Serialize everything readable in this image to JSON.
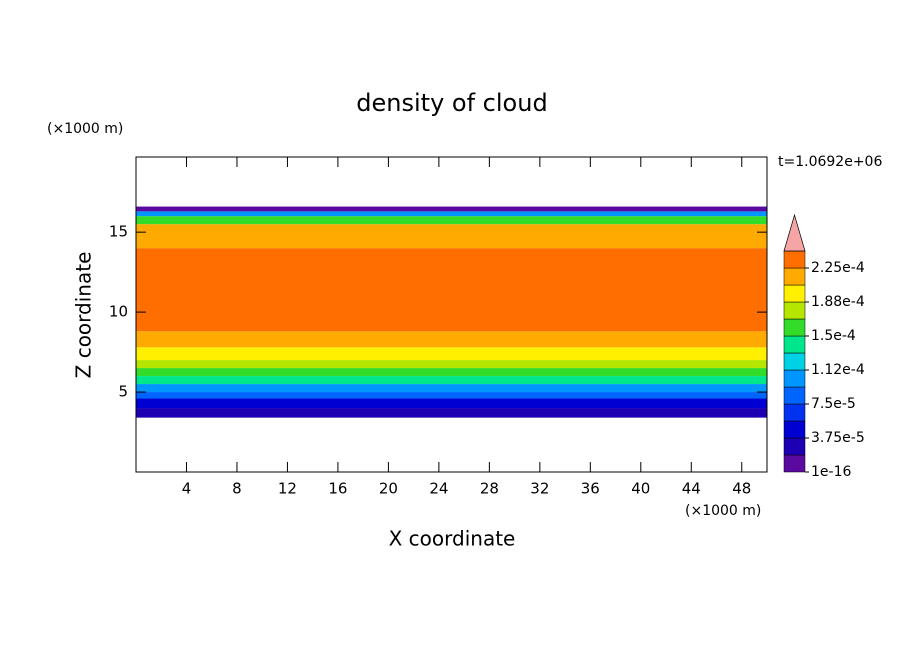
{
  "chart_data": {
    "type": "contour",
    "title": "density of cloud",
    "x_label": "X coordinate",
    "y_label": "Z coordinate",
    "x_unit": "(×1000 m)",
    "y_unit": "(×1000 m)",
    "time_label": "t=1.0692e+06",
    "xlim": [
      0,
      50
    ],
    "ylim": [
      0,
      19.7
    ],
    "xticks": [
      4,
      8,
      12,
      16,
      20,
      24,
      28,
      32,
      36,
      40,
      44,
      48
    ],
    "yticks": [
      5,
      10,
      15
    ],
    "colorbar": {
      "levels": [
        1e-16,
        1.875e-05,
        3.75e-05,
        5.625e-05,
        7.5e-05,
        9.375e-05,
        0.0001125,
        0.00013125,
        0.00015,
        0.00016875,
        0.0001875,
        0.00020625,
        0.000225,
        0.00024375
      ],
      "colors": [
        "#5a0aa0",
        "#1e00b4",
        "#0000d2",
        "#0032f0",
        "#0064ff",
        "#0096ff",
        "#00d2e6",
        "#00e68c",
        "#32dc28",
        "#b4e600",
        "#fff000",
        "#ffaa00",
        "#ff6e00"
      ],
      "extend_color": "#f5a5a5",
      "top_color": "#ff2a1e",
      "ticks": [
        {
          "value": 1e-16,
          "label": "1e-16"
        },
        {
          "value": 3.75e-05,
          "label": "3.75e-5"
        },
        {
          "value": 7.5e-05,
          "label": "7.5e-5"
        },
        {
          "value": 0.0001125,
          "label": "1.12e-4"
        },
        {
          "value": 0.00015,
          "label": "1.5e-4"
        },
        {
          "value": 0.0001875,
          "label": "1.88e-4"
        },
        {
          "value": 0.000225,
          "label": "2.25e-4"
        }
      ]
    },
    "profile": {
      "zbins": [
        3.4,
        4.0,
        4.6,
        5.0,
        5.5,
        6.0,
        6.5,
        7.0,
        7.8,
        8.8,
        14.0,
        15.5,
        16.0,
        16.3,
        16.6
      ],
      "values": [
        2e-05,
        5e-05,
        8e-05,
        0.00011,
        0.000135,
        0.000155,
        0.00017,
        0.000195,
        0.000215,
        0.00023,
        0.000215,
        0.00016,
        0.0001,
        1e-05
      ]
    }
  }
}
